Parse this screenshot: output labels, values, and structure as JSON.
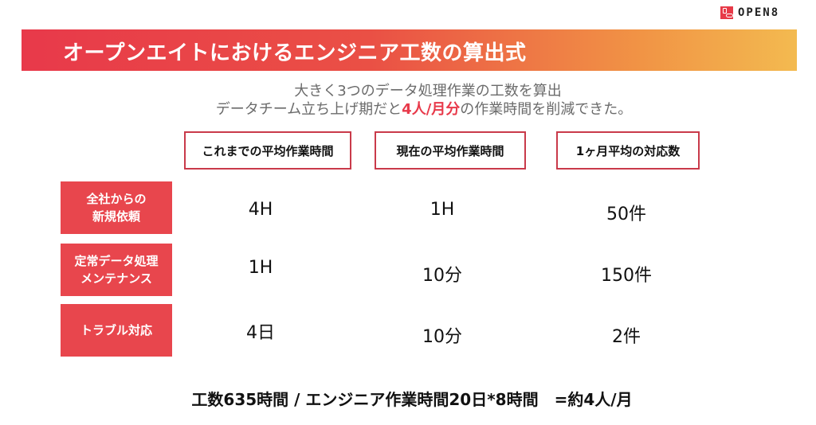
{
  "logo": {
    "text": "OPEN8"
  },
  "title": "オープンエイトにおけるエンジニア工数の算出式",
  "subtitle": {
    "line1": "大きく3つのデータ処理作業の工数を算出",
    "line2_prefix": "データチーム立ち上げ期だと",
    "line2_highlight": "4人/月分",
    "line2_suffix": "の作業時間を削減できた。"
  },
  "table": {
    "headers": [
      "これまでの平均作業時間",
      "現在の平均作業時間",
      "1ヶ月平均の対応数"
    ],
    "rows": [
      {
        "label_line1": "全社からの",
        "label_line2": "新規依頼",
        "cells": [
          "4H",
          "1H",
          "50件"
        ]
      },
      {
        "label_line1": "定常データ処理",
        "label_line2": "メンテナンス",
        "cells": [
          "1H",
          "10分",
          "150件"
        ]
      },
      {
        "label_line1": "トラブル対応",
        "label_line2": "",
        "cells": [
          "4日",
          "10分",
          "2件"
        ]
      }
    ]
  },
  "formula": "工数635時間 / エンジニア作業時間20日*8時間　=約4人/月",
  "colors": {
    "accent": "#e8394a",
    "gradient_end": "#f3ba50",
    "row_header": "#e8464d"
  }
}
